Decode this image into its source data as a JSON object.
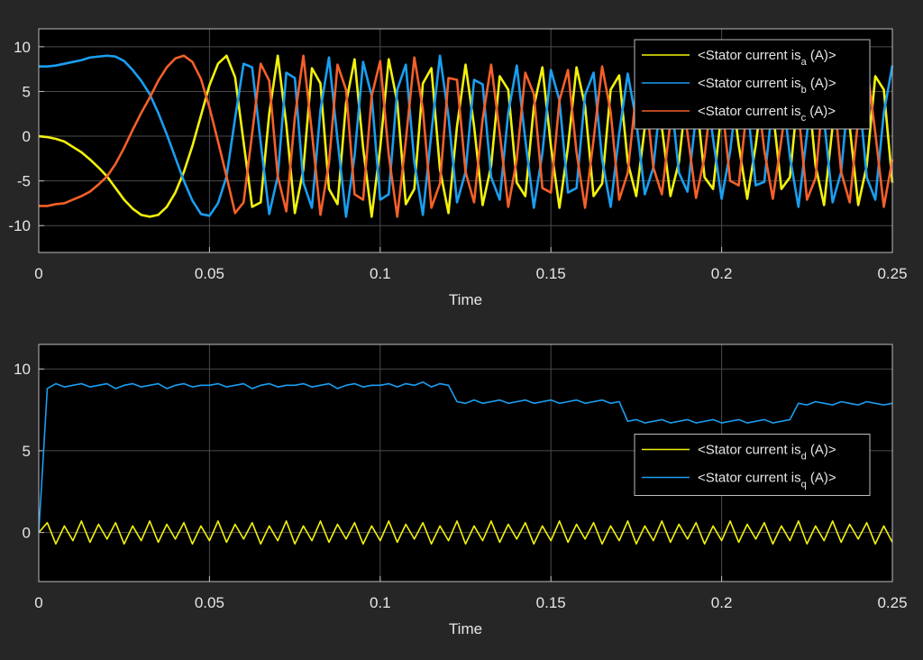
{
  "chart_data": [
    {
      "type": "line",
      "xlabel": "Time",
      "x": [
        0,
        0.0025,
        0.005,
        0.0075,
        0.01,
        0.0125,
        0.015,
        0.0175,
        0.02,
        0.0225,
        0.025,
        0.0275,
        0.03,
        0.0325,
        0.035,
        0.0375,
        0.04,
        0.0425,
        0.045,
        0.0475,
        0.05,
        0.0525,
        0.055,
        0.0575,
        0.06,
        0.0625,
        0.065,
        0.0675,
        0.07,
        0.0725,
        0.075,
        0.0775,
        0.08,
        0.0825,
        0.085,
        0.0875,
        0.09,
        0.0925,
        0.095,
        0.0975,
        0.1,
        0.1025,
        0.105,
        0.1075,
        0.11,
        0.1125,
        0.115,
        0.1175,
        0.12,
        0.1225,
        0.125,
        0.1275,
        0.13,
        0.1325,
        0.135,
        0.1375,
        0.14,
        0.1425,
        0.145,
        0.1475,
        0.15,
        0.1525,
        0.155,
        0.1575,
        0.16,
        0.1625,
        0.165,
        0.1675,
        0.17,
        0.1725,
        0.175,
        0.1775,
        0.18,
        0.1825,
        0.185,
        0.1875,
        0.19,
        0.1925,
        0.195,
        0.1975,
        0.2,
        0.2025,
        0.205,
        0.2075,
        0.21,
        0.2125,
        0.215,
        0.2175,
        0.22,
        0.2225,
        0.225,
        0.2275,
        0.23,
        0.2325,
        0.235,
        0.2375,
        0.24,
        0.2425,
        0.245,
        0.2475,
        0.25
      ],
      "xlim": [
        0,
        0.25
      ],
      "xticks": [
        0,
        0.05,
        0.1,
        0.15,
        0.2,
        0.25
      ],
      "ylim": [
        -13,
        12
      ],
      "yticks": [
        -10,
        -5,
        0,
        5,
        10
      ],
      "grid": true,
      "legend_position": "northeast",
      "series": [
        {
          "name": [
            "<Stator current is",
            "a",
            " (A)>"
          ],
          "color": "#f2f20c",
          "values": [
            0,
            -0.1,
            -0.3,
            -0.6,
            -1.2,
            -1.8,
            -2.6,
            -3.5,
            -4.5,
            -5.8,
            -7.1,
            -8.1,
            -8.8,
            -9.0,
            -8.8,
            -7.9,
            -6.3,
            -4.0,
            -1.1,
            2.3,
            5.7,
            8.1,
            9.0,
            6.6,
            -0.7,
            -7.9,
            -7.4,
            2.5,
            9.0,
            1.3,
            -8.6,
            -3.7,
            7.6,
            5.9,
            -5.9,
            -7.6,
            3.7,
            8.6,
            -1.3,
            -9.0,
            -1.3,
            8.6,
            3.8,
            -7.6,
            -5.9,
            5.9,
            7.6,
            -3.7,
            -8.6,
            1.1,
            8.0,
            1.1,
            -7.7,
            -3.3,
            6.7,
            5.2,
            -5.2,
            -6.7,
            3.3,
            7.7,
            -1.1,
            -8.0,
            -1.2,
            7.7,
            3.4,
            -6.7,
            -5.3,
            5.2,
            6.8,
            -2.9,
            -6.7,
            1.0,
            7.0,
            1.0,
            -6.7,
            -2.9,
            5.9,
            4.6,
            -4.6,
            -5.9,
            2.9,
            6.7,
            -1.0,
            -7.0,
            -1.0,
            6.7,
            2.9,
            -5.9,
            -4.6,
            5.2,
            6.8,
            -3.3,
            -7.7,
            1.1,
            8.0,
            1.1,
            -7.7,
            -3.3,
            6.7,
            5.2,
            -5.2
          ]
        },
        {
          "name": [
            "<Stator current is",
            "b",
            " (A)>"
          ],
          "color": "#1a9ef0",
          "values": [
            7.8,
            7.8,
            7.9,
            8.1,
            8.3,
            8.5,
            8.8,
            8.9,
            9.0,
            8.9,
            8.4,
            7.4,
            6.2,
            4.7,
            2.6,
            0.2,
            -2.4,
            -5.0,
            -7.2,
            -8.7,
            -8.9,
            -7.5,
            -4.5,
            2.0,
            8.1,
            7.7,
            -0.7,
            -8.7,
            -4.5,
            7.1,
            6.5,
            -5.2,
            -8.0,
            2.9,
            8.8,
            -0.4,
            -9.0,
            -2.2,
            8.3,
            4.5,
            -7.1,
            -6.5,
            5.2,
            8.0,
            -2.9,
            -8.8,
            0.4,
            9.0,
            2.2,
            -7.4,
            -4.0,
            6.3,
            5.8,
            -4.6,
            -7.1,
            2.6,
            7.9,
            -0.4,
            -8.0,
            -1.9,
            7.4,
            4.0,
            -6.3,
            -5.8,
            4.6,
            7.1,
            -2.6,
            -7.9,
            0.3,
            7.0,
            1.7,
            -6.5,
            -3.5,
            5.5,
            5.1,
            -4.1,
            -6.2,
            2.3,
            6.9,
            -0.3,
            -7.0,
            -1.7,
            6.5,
            3.5,
            -5.5,
            -5.1,
            4.0,
            6.2,
            -2.3,
            -7.9,
            0.3,
            8.0,
            1.9,
            -7.4,
            -4.0,
            6.3,
            5.8,
            -4.6,
            -7.1,
            2.6,
            7.9
          ]
        },
        {
          "name": [
            "<Stator current is",
            "c",
            " (A)>"
          ],
          "color": "#f4602a",
          "values": [
            -7.8,
            -7.8,
            -7.6,
            -7.5,
            -7.1,
            -6.7,
            -6.2,
            -5.4,
            -4.5,
            -3.1,
            -1.3,
            0.7,
            2.6,
            4.3,
            6.2,
            7.7,
            8.7,
            9.0,
            8.3,
            6.4,
            3.2,
            -0.6,
            -4.5,
            -8.6,
            -7.4,
            0.3,
            8.1,
            6.2,
            -4.5,
            -8.4,
            2.1,
            9.0,
            0.4,
            -8.8,
            -3.0,
            8.0,
            5.2,
            -6.5,
            -7.1,
            4.5,
            8.4,
            -2.1,
            -9.0,
            -0.5,
            8.8,
            3.0,
            -8.0,
            -5.3,
            6.5,
            6.3,
            -4.0,
            -7.4,
            1.9,
            8.0,
            0.4,
            -7.9,
            -2.6,
            7.1,
            4.7,
            -5.8,
            -6.3,
            4.0,
            7.4,
            -1.8,
            -8.0,
            -0.4,
            7.8,
            2.7,
            -7.1,
            -4.1,
            5.0,
            5.5,
            -3.5,
            -6.5,
            1.6,
            7.0,
            0.3,
            -6.9,
            -2.3,
            6.2,
            4.1,
            -5.0,
            -5.5,
            3.5,
            6.5,
            -1.6,
            -7.0,
            -0.4,
            6.9,
            2.7,
            -7.1,
            -4.7,
            5.8,
            6.3,
            -4.0,
            -7.4,
            1.9,
            8.0,
            0.4,
            -7.9,
            -2.6
          ]
        }
      ]
    },
    {
      "type": "line",
      "xlabel": "Time",
      "x": [
        0,
        0.0025,
        0.005,
        0.0075,
        0.01,
        0.0125,
        0.015,
        0.0175,
        0.02,
        0.0225,
        0.025,
        0.0275,
        0.03,
        0.0325,
        0.035,
        0.0375,
        0.04,
        0.0425,
        0.045,
        0.0475,
        0.05,
        0.0525,
        0.055,
        0.0575,
        0.06,
        0.0625,
        0.065,
        0.0675,
        0.07,
        0.0725,
        0.075,
        0.0775,
        0.08,
        0.0825,
        0.085,
        0.0875,
        0.09,
        0.0925,
        0.095,
        0.0975,
        0.1,
        0.1025,
        0.105,
        0.1075,
        0.11,
        0.1125,
        0.115,
        0.1175,
        0.12,
        0.1225,
        0.125,
        0.1275,
        0.13,
        0.1325,
        0.135,
        0.1375,
        0.14,
        0.1425,
        0.145,
        0.1475,
        0.15,
        0.1525,
        0.155,
        0.1575,
        0.16,
        0.1625,
        0.165,
        0.1675,
        0.17,
        0.1725,
        0.175,
        0.1775,
        0.18,
        0.1825,
        0.185,
        0.1875,
        0.19,
        0.1925,
        0.195,
        0.1975,
        0.2,
        0.2025,
        0.205,
        0.2075,
        0.21,
        0.2125,
        0.215,
        0.2175,
        0.22,
        0.2225,
        0.225,
        0.2275,
        0.23,
        0.2325,
        0.235,
        0.2375,
        0.24,
        0.2425,
        0.245,
        0.2475,
        0.25
      ],
      "xlim": [
        0,
        0.25
      ],
      "xticks": [
        0,
        0.05,
        0.1,
        0.15,
        0.2,
        0.25
      ],
      "ylim": [
        -3,
        11.5
      ],
      "yticks": [
        0,
        5,
        10
      ],
      "grid": true,
      "legend_position": "east",
      "series": [
        {
          "name": [
            "<Stator current is",
            "d",
            " (A)>"
          ],
          "color": "#f2f20c",
          "values": [
            0,
            0.6,
            -0.7,
            0.4,
            -0.5,
            0.7,
            -0.6,
            0.5,
            -0.4,
            0.6,
            -0.7,
            0.4,
            -0.5,
            0.7,
            -0.6,
            0.5,
            -0.4,
            0.6,
            -0.7,
            0.4,
            -0.5,
            0.7,
            -0.6,
            0.5,
            -0.4,
            0.6,
            -0.7,
            0.4,
            -0.5,
            0.7,
            -0.7,
            0.4,
            -0.5,
            0.7,
            -0.6,
            0.5,
            -0.4,
            0.6,
            -0.7,
            0.4,
            -0.5,
            0.7,
            -0.6,
            0.5,
            -0.4,
            0.6,
            -0.7,
            0.4,
            -0.5,
            0.7,
            -0.7,
            0.4,
            -0.5,
            0.7,
            -0.6,
            0.5,
            -0.4,
            0.6,
            -0.7,
            0.4,
            -0.5,
            0.7,
            -0.6,
            0.5,
            -0.4,
            0.6,
            -0.7,
            0.4,
            -0.5,
            0.7,
            -0.7,
            0.4,
            -0.5,
            0.7,
            -0.6,
            0.5,
            -0.4,
            0.6,
            -0.7,
            0.4,
            -0.5,
            0.7,
            -0.6,
            0.5,
            -0.4,
            0.6,
            -0.7,
            0.4,
            -0.5,
            0.7,
            -0.7,
            0.4,
            -0.5,
            0.7,
            -0.6,
            0.5,
            -0.4,
            0.6,
            -0.7,
            0.4,
            -0.6
          ]
        },
        {
          "name": [
            "<Stator current is",
            "q",
            " (A)>"
          ],
          "color": "#1a9ef0",
          "values": [
            0,
            8.8,
            9.1,
            8.9,
            9.0,
            9.1,
            8.9,
            9.0,
            9.1,
            8.8,
            9.0,
            9.1,
            8.9,
            9.0,
            9.1,
            8.8,
            9.0,
            9.1,
            8.9,
            9.0,
            9.0,
            9.1,
            8.9,
            9.0,
            9.1,
            8.8,
            9.0,
            9.1,
            8.9,
            9.0,
            9.0,
            9.1,
            8.9,
            9.0,
            9.1,
            8.8,
            9.0,
            9.1,
            8.9,
            9.0,
            9.0,
            9.1,
            8.9,
            9.1,
            9.0,
            9.2,
            8.9,
            9.1,
            9.0,
            8.0,
            7.9,
            8.1,
            7.9,
            8.0,
            8.1,
            7.9,
            8.0,
            8.1,
            7.9,
            8.0,
            8.1,
            7.9,
            8.0,
            8.1,
            7.9,
            8.0,
            8.1,
            7.9,
            8.0,
            6.8,
            6.9,
            6.7,
            6.8,
            6.9,
            6.7,
            6.8,
            6.9,
            6.7,
            6.8,
            6.9,
            6.7,
            6.8,
            6.9,
            6.7,
            6.8,
            6.9,
            6.7,
            6.8,
            6.9,
            7.9,
            7.8,
            8.0,
            7.9,
            7.8,
            8.0,
            7.9,
            7.8,
            8.0,
            7.9,
            7.8,
            7.9
          ]
        }
      ]
    }
  ]
}
